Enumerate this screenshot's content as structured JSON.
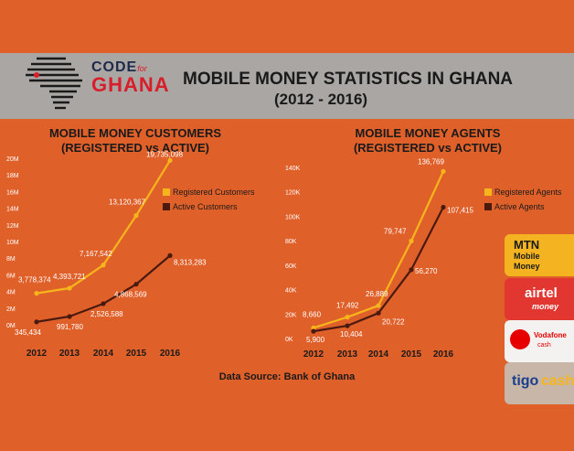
{
  "header": {
    "logo_code": "CODE",
    "logo_for": "for",
    "logo_ghana": "GHANA",
    "title_line1": "MOBILE MONEY STATISTICS IN GHANA",
    "title_line2": "(2012 - 2016)"
  },
  "source": "Data Source: Bank of Ghana",
  "operators": {
    "mtn_line1": "MTN",
    "mtn_line2": "Mobile",
    "mtn_line3": "Money",
    "airtel_line1": "airtel",
    "airtel_line2": "money",
    "voda_line1": "Vodafone",
    "voda_line2": "cash",
    "tigo_line1": "tigo",
    "tigo_line2": "cash"
  },
  "colors": {
    "background": "#e0602a",
    "registered": "#f7b51c",
    "active": "#4a1a10"
  },
  "chart_data": [
    {
      "type": "line",
      "title_line1": "MOBILE MONEY CUSTOMERS",
      "title_line2": "(REGISTERED vs ACTIVE)",
      "x": [
        "2012",
        "2013",
        "2014",
        "2015",
        "2016"
      ],
      "ylim": [
        0,
        20000000
      ],
      "yticks": [
        "0M",
        "2M",
        "4M",
        "6M",
        "8M",
        "10M",
        "12M",
        "14M",
        "16M",
        "18M",
        "20M"
      ],
      "series": [
        {
          "name": "Registered Customers",
          "values": [
            3778374,
            4393721,
            7167542,
            13120367,
            19735098
          ],
          "labels": [
            "3,778,374",
            "4,393,721",
            "7,167,542",
            "13,120,367",
            "19,735,098"
          ]
        },
        {
          "name": "Active Customers",
          "values": [
            345434,
            991780,
            2526588,
            4868569,
            8313283
          ],
          "labels": [
            "345,434",
            "991,780",
            "2,526,588",
            "4,868,569",
            "8,313,283"
          ]
        }
      ],
      "legend": "right"
    },
    {
      "type": "line",
      "title_line1": "MOBILE MONEY AGENTS",
      "title_line2": "(REGISTERED vs ACTIVE)",
      "x": [
        "2012",
        "2013",
        "2014",
        "2015",
        "2016"
      ],
      "ylim": [
        0,
        140000
      ],
      "yticks": [
        "0K",
        "20K",
        "40K",
        "60K",
        "80K",
        "100K",
        "120K",
        "140K"
      ],
      "series": [
        {
          "name": "Registered Agents",
          "values": [
            8660,
            17492,
            26889,
            79747,
            136769
          ],
          "labels": [
            "8,660",
            "17,492",
            "26,889",
            "79,747",
            "136,769"
          ]
        },
        {
          "name": "Active Agents",
          "values": [
            5900,
            10404,
            20722,
            56270,
            107415
          ],
          "labels": [
            "5,900",
            "10,404",
            "20,722",
            "56,270",
            "107,415"
          ]
        }
      ],
      "legend": "right"
    }
  ]
}
